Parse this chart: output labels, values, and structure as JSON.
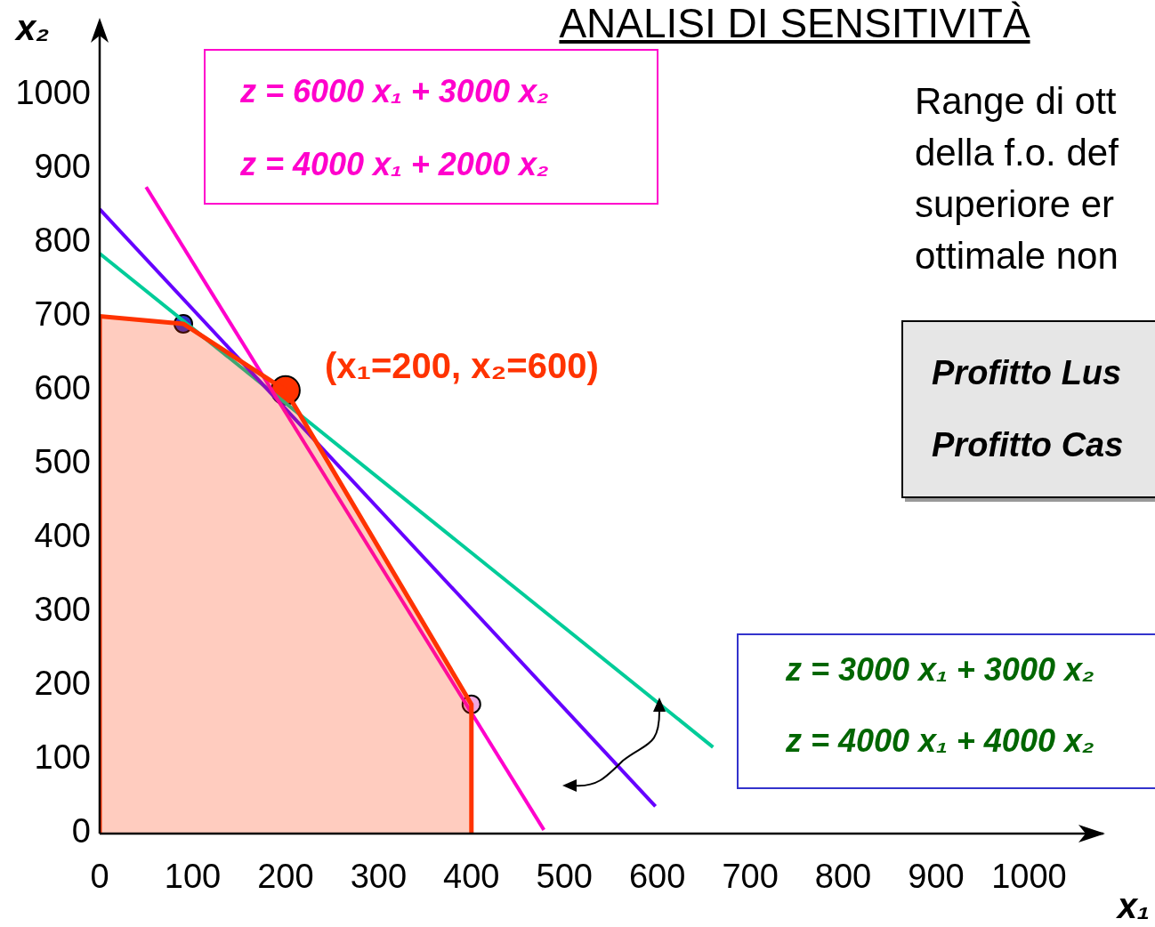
{
  "chart_data": {
    "type": "line",
    "title": "ANALISI DI SENSITIVITÀ",
    "xlabel": "x₁",
    "ylabel": "x₂",
    "xlim": [
      0,
      1080
    ],
    "ylim": [
      0,
      1080
    ],
    "xticks": [
      0,
      100,
      200,
      300,
      400,
      500,
      600,
      700,
      800,
      900,
      1000
    ],
    "yticks": [
      0,
      100,
      200,
      300,
      400,
      500,
      600,
      700,
      800,
      900,
      1000
    ],
    "series": [
      {
        "type": "area",
        "color": "#ff3300",
        "x": [
          0,
          0,
          90,
          200,
          400,
          400
        ],
        "values": [
          0,
          700,
          690,
          600,
          175,
          0
        ]
      },
      {
        "type": "line",
        "color": "#ff00cc",
        "x": [
          50,
          478
        ],
        "values": [
          875,
          5
        ]
      },
      {
        "type": "line",
        "color": "#6600ff",
        "x": [
          0,
          598
        ],
        "values": [
          845,
          37
        ]
      },
      {
        "type": "line",
        "color": "#00cc99",
        "x": [
          0,
          660
        ],
        "values": [
          785,
          117
        ]
      },
      {
        "type": "scatter",
        "color": "#3333cc",
        "marker": "circle",
        "x": [
          90
        ],
        "values": [
          690
        ]
      },
      {
        "type": "scatter",
        "color": "#ff3300",
        "marker": "circle",
        "x": [
          200
        ],
        "values": [
          600
        ]
      },
      {
        "type": "scatter",
        "color": "#f0a8e0",
        "marker": "circle",
        "x": [
          400
        ],
        "values": [
          175
        ]
      }
    ],
    "annotations": [
      {
        "text": "(x₁=200, x₂=600)",
        "x": 200,
        "y": 600
      },
      "z = 6000 x₁ + 3000 x₂",
      "z = 4000 x₁ + 2000 x₂",
      "z = 3000 x₁ + 3000 x₂",
      "z = 4000 x₁ + 4000 x₂",
      "Range di ott",
      "della f.o. def",
      "superiore er",
      "ottimale non",
      "Profitto Lus",
      "Profitto Cas"
    ]
  }
}
